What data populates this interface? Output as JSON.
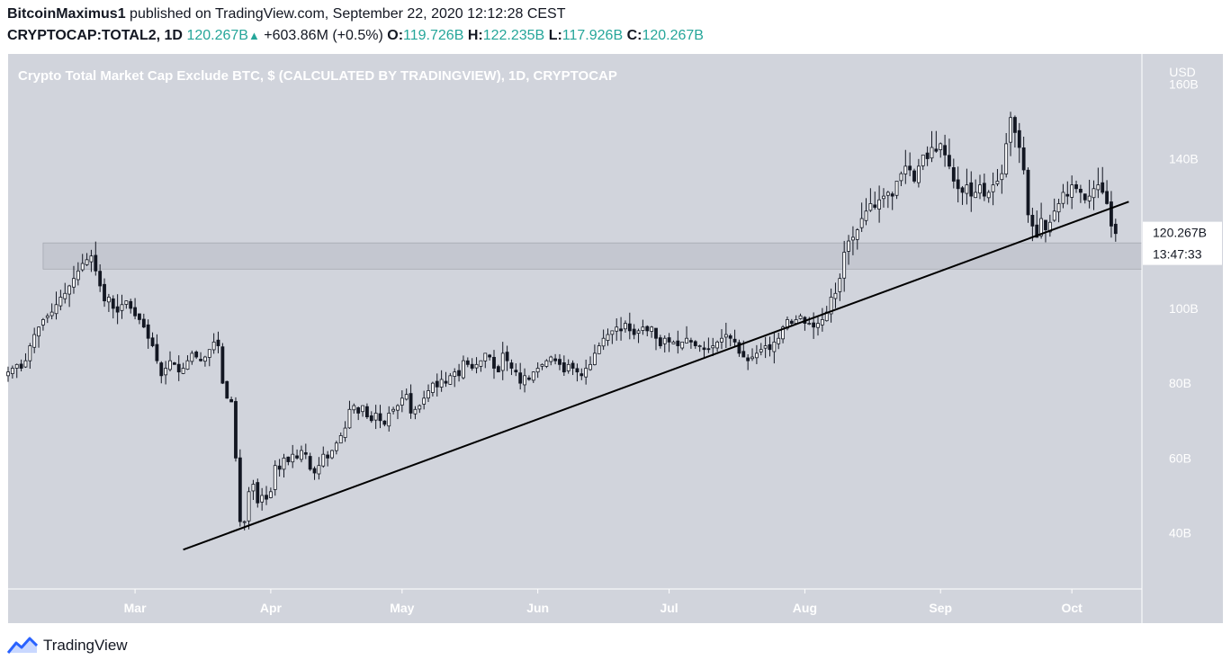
{
  "header": {
    "author": "BitcoinMaximus1",
    "published": " published on TradingView.com, September 22, 2020 12:12:28 CEST",
    "symbol": "CRYPTOCAP:TOTAL2, 1D",
    "last": "120.267B",
    "change": "+603.86M (+0.5%)",
    "o_label": "O:",
    "o": "119.726B",
    "h_label": "H:",
    "h": "122.235B",
    "l_label": "L:",
    "l": "117.926B",
    "c_label": "C:",
    "c": "120.267B"
  },
  "footer": {
    "brand": "TradingView"
  },
  "colors": {
    "plot_bg": "#d1d4dc",
    "value_up": "#26a69a",
    "zone": "#c3c6cf",
    "candle": "#131722"
  },
  "chart_data": {
    "type": "candlestick",
    "title": "Crypto Total Market Cap Exclude BTC, $ (CALCULATED BY TRADINGVIEW), 1D, CRYPTOCAP",
    "ylabel": "USD",
    "y_ticks": [
      {
        "value": 40,
        "label": "40B"
      },
      {
        "value": 60,
        "label": "60B"
      },
      {
        "value": 80,
        "label": "80B"
      },
      {
        "value": 100,
        "label": "100B"
      },
      {
        "value": 140,
        "label": "140B"
      },
      {
        "value": 160,
        "label": "160B"
      }
    ],
    "ylim": [
      25,
      168
    ],
    "xlim": [
      "2020-02-01",
      "2020-10-17"
    ],
    "x_ticks": [
      {
        "date": "2020-03-01",
        "label": "Mar"
      },
      {
        "date": "2020-04-01",
        "label": "Apr"
      },
      {
        "date": "2020-05-01",
        "label": "May"
      },
      {
        "date": "2020-06-01",
        "label": "Jun"
      },
      {
        "date": "2020-07-01",
        "label": "Jul"
      },
      {
        "date": "2020-08-01",
        "label": "Aug"
      },
      {
        "date": "2020-09-01",
        "label": "Sep"
      },
      {
        "date": "2020-10-01",
        "label": "Oct"
      }
    ],
    "last_price_label": "120.267B",
    "countdown_label": "13:47:33",
    "last_price": 120.267,
    "support_zone": {
      "from": "2020-02-09",
      "to": "2020-10-17",
      "low": 110.5,
      "high": 117.5
    },
    "trendline": {
      "start": {
        "date": "2020-03-12",
        "value": 35.5
      },
      "end": {
        "date": "2020-10-14",
        "value": 128.5
      }
    },
    "start_date": "2020-02-01",
    "closes": [
      83,
      84,
      85,
      84,
      86,
      90,
      93,
      95,
      97,
      98,
      99,
      101,
      103,
      104,
      106,
      108,
      110,
      112,
      113,
      114,
      110,
      106,
      102,
      103,
      100,
      99,
      101,
      102,
      100,
      98,
      97,
      95,
      92,
      90,
      86,
      82,
      84,
      86,
      85,
      83,
      84,
      86,
      88,
      87,
      86,
      87,
      89,
      91,
      90,
      80,
      76,
      75,
      60,
      43,
      43,
      51,
      53,
      48,
      50,
      49,
      51,
      58,
      57,
      60,
      59,
      61,
      60,
      62,
      61,
      57,
      56,
      58,
      61,
      60,
      62,
      64,
      66,
      68,
      73,
      74,
      72,
      74,
      71,
      70,
      72,
      70,
      69,
      72,
      73,
      74,
      76,
      77,
      72,
      73,
      74,
      76,
      78,
      80,
      79,
      81,
      80,
      82,
      83,
      82,
      86,
      85,
      84,
      85,
      86,
      88,
      87,
      84,
      83,
      88,
      86,
      84,
      83,
      80,
      82,
      81,
      83,
      84,
      85,
      86,
      87,
      86,
      85,
      83,
      85,
      84,
      83,
      82,
      84,
      85,
      88,
      90,
      92,
      93,
      94,
      95,
      94,
      96,
      94,
      93,
      94,
      95,
      94,
      95,
      92,
      90,
      92,
      91,
      91,
      90,
      91,
      92,
      91,
      90,
      90,
      89,
      89,
      90,
      91,
      92,
      93,
      92,
      91,
      88,
      87,
      86,
      87,
      88,
      89,
      90,
      89,
      91,
      92,
      95,
      97,
      96,
      97,
      98,
      96,
      96,
      95,
      96,
      97,
      99,
      103,
      104,
      108,
      115,
      118,
      119,
      121,
      124,
      126,
      128,
      127,
      129,
      130,
      131,
      130,
      134,
      136,
      138,
      137,
      134,
      138,
      141,
      140,
      143,
      142,
      144,
      141,
      138,
      134,
      132,
      131,
      133,
      130,
      131,
      133,
      130,
      131,
      133,
      134,
      136,
      144,
      151,
      147,
      143,
      137,
      125,
      122,
      119,
      124,
      121,
      123,
      126,
      128,
      131,
      130,
      133,
      132,
      131,
      129,
      130,
      132,
      133,
      131,
      128,
      122,
      120
    ]
  }
}
